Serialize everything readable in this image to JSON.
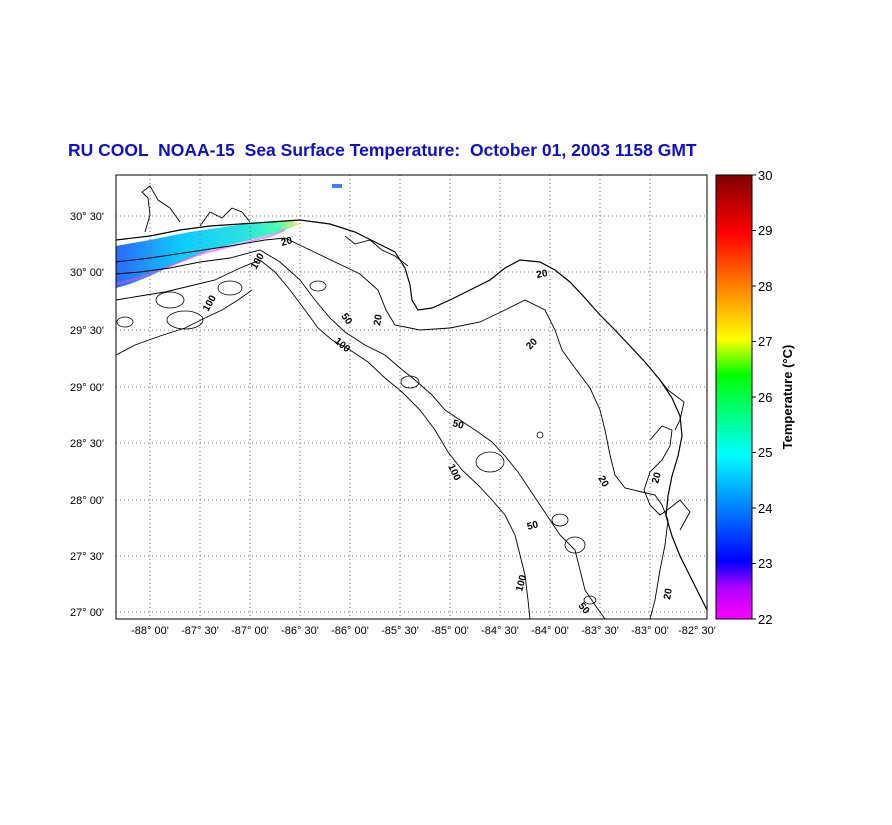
{
  "title": "RU COOL  NOAA-15  Sea Surface Temperature:  October 01, 2003 1158 GMT",
  "map": {
    "lat_labels": [
      "30° 30'",
      "30° 00'",
      "29° 30'",
      "29° 00'",
      "28° 30'",
      "28° 00'",
      "27° 30'",
      "27° 00'"
    ],
    "lon_labels": [
      "-88° 00'",
      "-87° 30'",
      "-87° 00'",
      "-86° 30'",
      "-86° 00'",
      "-85° 30'",
      "-85° 00'",
      "-84° 30'",
      "-84° 00'",
      "-83° 30'",
      "-83° 00'",
      "-82° 30'"
    ],
    "contour_labels": [
      "20",
      "100",
      "100",
      "50",
      "100",
      "20",
      "20",
      "20",
      "50",
      "100",
      "20",
      "20",
      "50",
      "100",
      "50",
      "20"
    ],
    "colors": {
      "coastline": "#000000",
      "grid": "#707070",
      "frame": "#000000"
    }
  },
  "colorbar": {
    "label": "Temperature (°C)",
    "ticks": [
      "30",
      "29",
      "28",
      "27",
      "26",
      "25",
      "24",
      "23",
      "22"
    ],
    "range": [
      22,
      30
    ],
    "stops": [
      "#ff00ff",
      "#8000ff",
      "#0000ff",
      "#0080ff",
      "#00ffff",
      "#00ff80",
      "#00ff00",
      "#ffff00",
      "#ff8000",
      "#ff0000",
      "#800000"
    ]
  }
}
